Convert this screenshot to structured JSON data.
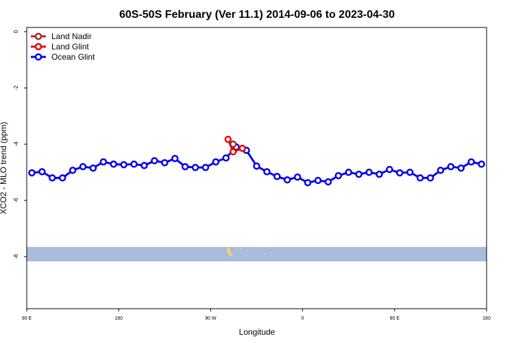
{
  "chart_data": {
    "type": "line",
    "title": "60S-50S February (Ver 11.1)   2014-09-06 to 2023-04-30",
    "x_label": "Longitude",
    "y_label": "XCO2 - MLO trend (ppm)",
    "xlim": [
      90,
      540
    ],
    "xticks": [
      {
        "value": 90,
        "label": "90 E"
      },
      {
        "value": 180,
        "label": "180"
      },
      {
        "value": 270,
        "label": "90 W"
      },
      {
        "value": 360,
        "label": "0"
      },
      {
        "value": 450,
        "label": "90 E"
      },
      {
        "value": 540,
        "label": "180"
      }
    ],
    "ylim": [
      -9.85,
      0.15
    ],
    "yticks": [
      0,
      -2,
      -4,
      -6,
      -8
    ],
    "legend": "top-left",
    "series": [
      {
        "name": "Land Nadir",
        "color": "#a52a2a",
        "x": [
          292
        ],
        "values": [
          -4.0
        ]
      },
      {
        "name": "Land Glint",
        "color": "#ee0000",
        "x": [
          287,
          292,
          301
        ],
        "values": [
          -3.83,
          -4.27,
          -4.15
        ]
      },
      {
        "name": "Ocean Glint",
        "color": "#0000ee",
        "x": [
          95,
          105,
          115,
          125,
          135,
          145,
          155,
          165,
          175,
          185,
          195,
          205,
          215,
          225,
          235,
          245,
          255,
          265,
          275,
          285,
          295,
          305,
          315,
          325,
          335,
          345,
          355,
          365,
          375,
          385,
          395,
          405,
          415,
          425,
          435,
          445,
          455,
          465,
          475,
          485,
          495,
          505,
          515,
          525,
          535
        ],
        "values": [
          -5.02,
          -4.98,
          -5.2,
          -5.2,
          -4.93,
          -4.8,
          -4.85,
          -4.63,
          -4.71,
          -4.73,
          -4.71,
          -4.76,
          -4.59,
          -4.66,
          -4.51,
          -4.8,
          -4.83,
          -4.83,
          -4.63,
          -4.49,
          -4.1,
          -4.22,
          -4.78,
          -4.98,
          -5.15,
          -5.27,
          -5.17,
          -5.37,
          -5.29,
          -5.34,
          -5.12,
          -5.0,
          -5.07,
          -5.0,
          -5.07,
          -4.9,
          -5.02,
          -5.0,
          -5.2,
          -5.2,
          -4.93,
          -4.8,
          -4.85,
          -4.63,
          -4.71
        ]
      }
    ]
  }
}
